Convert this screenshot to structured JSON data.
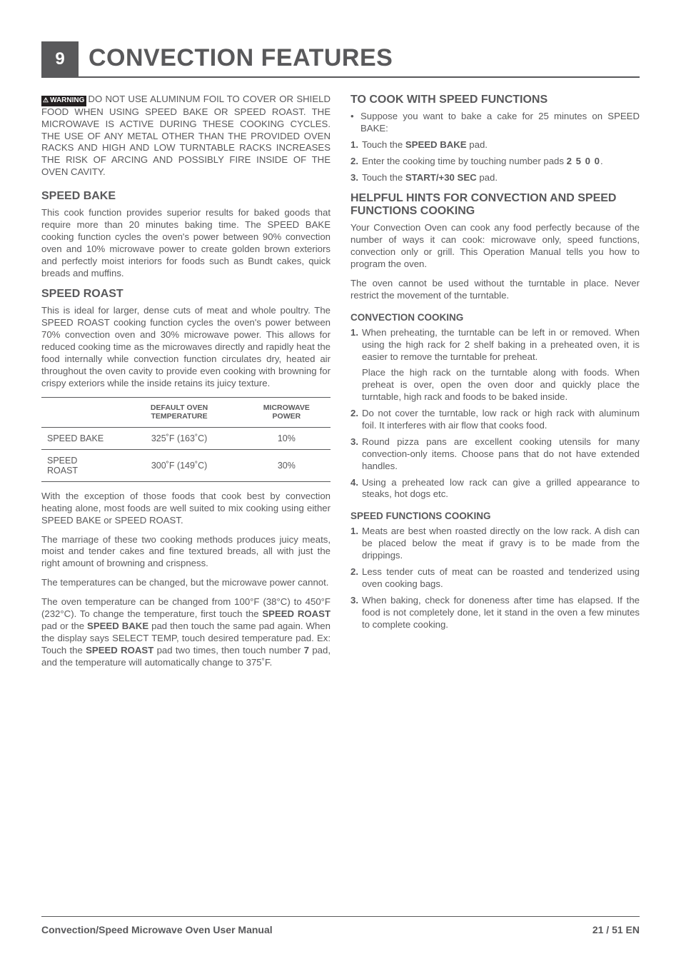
{
  "colors": {
    "text": "#59595b",
    "bg": "#ffffff",
    "warning_bg": "#231f20",
    "warning_fg": "#ffffff"
  },
  "fonts": {
    "body_pt": 13.2,
    "h2_pt": 16,
    "h3_pt": 13.5,
    "title_pt": 34
  },
  "header": {
    "page_number": "9",
    "title": "CONVECTION FEATURES"
  },
  "left": {
    "warning_label": "WARNING",
    "warning_text": "DO NOT USE ALUMINUM FOIL TO COVER OR SHIELD FOOD WHEN USING SPEED BAKE OR SPEED ROAST. THE MICROWAVE IS ACTIVE DURING THESE COOKING CYCLES. THE USE OF ANY METAL OTHER THAN THE PROVIDED OVEN RACKS AND HIGH AND LOW TURNTABLE RACKS INCREASES THE RISK OF ARCING AND POSSIBLY FIRE INSIDE OF THE OVEN CAVITY.",
    "speed_bake_h": "SPEED BAKE",
    "speed_bake_p": "This cook function provides superior results for baked goods that require more than 20 minutes baking time. The SPEED BAKE cooking function cycles the oven's power between 90% convection oven and 10% microwave power to create golden brown exteriors and perfectly moist interiors for foods such as Bundt cakes, quick breads and muffins.",
    "speed_roast_h": "SPEED ROAST",
    "speed_roast_p": "This is ideal for larger, dense cuts of meat and whole poultry. The SPEED ROAST cooking function cycles the oven's power between 70% convection oven and 30% microwave power. This allows for reduced cooking time as the microwaves directly and rapidly heat the food internally while convection function circulates dry, heated air throughout the oven cavity to provide even cooking with browning for crispy exteriors while the inside retains its juicy texture.",
    "table": {
      "type": "table",
      "columns": [
        "",
        "DEFAULT OVEN TEMPERATURE",
        "MICROWAVE POWER"
      ],
      "rows": [
        [
          "SPEED BAKE",
          "325˚F (163˚C)",
          "10%"
        ],
        [
          "SPEED ROAST",
          "300˚F (149˚C)",
          "30%"
        ]
      ],
      "border_color": "#59595b",
      "header_fontsize": 10.5,
      "cell_fontsize": 12.5
    },
    "p_after_1": "With the exception of those foods that cook best by convection heating alone, most foods are well suited to mix cooking using either SPEED BAKE or SPEED ROAST.",
    "p_after_2": "The marriage of these two cooking methods produces juicy meats, moist and tender cakes and fine textured breads, all with just the right amount of browning and crispness.",
    "p_after_3": "The temperatures can be changed, but the microwave power cannot.",
    "p_after_4_pre": "The oven temperature can be changed from 100°F (38°C) to 450°F (232°C). To change the temperature, first touch the ",
    "p_after_4_b1": "SPEED ROAST",
    "p_after_4_mid1": " pad or the ",
    "p_after_4_b2": "SPEED BAKE",
    "p_after_4_mid2": " pad then touch the same pad again. When the display says SELECT TEMP, touch desired temperature pad. Ex: Touch the ",
    "p_after_4_b3": "SPEED ROAST",
    "p_after_4_mid3": " pad two times, then touch number ",
    "p_after_4_b4": "7",
    "p_after_4_end": " pad, and the temperature will automatically change to 375˚F."
  },
  "right": {
    "cook_h": "TO COOK WITH SPEED FUNCTIONS",
    "bullet1": "Suppose you want to bake a cake for 25 minutes on SPEED BAKE:",
    "step1_pre": "Touch the ",
    "step1_b": "SPEED BAKE",
    "step1_post": " pad.",
    "step2_pre": "Enter the cooking time by touching number pads ",
    "step2_b": "2 5 0 0",
    "step2_post": ".",
    "step3_pre": "Touch the ",
    "step3_b": "START/+30 SEC",
    "step3_post": " pad.",
    "hints_h": "HELPFUL HINTS FOR CONVECTION AND SPEED FUNCTIONS COOKING",
    "hints_p1": "Your Convection Oven can cook any food perfectly because of the number of ways it can cook: microwave only, speed functions, convection only or grill. This Operation Manual tells you how to program the oven.",
    "hints_p2": "The oven cannot be used without the turntable in place. Never restrict the movement of the turntable.",
    "conv_h": "CONVECTION COOKING",
    "conv_1a": "When preheating, the turntable can be left in or removed. When using the high rack for 2 shelf baking in a preheated oven, it is easier to remove the turntable for preheat.",
    "conv_1b": "Place the high rack on the turntable along with foods. When preheat is over, open the oven door and quickly place the turntable, high rack and foods to be baked inside.",
    "conv_2": "Do not cover the turntable, low rack or high rack with aluminum foil. It interferes with air flow that cooks food.",
    "conv_3": "Round pizza pans are excellent cooking utensils for many convection-only items. Choose pans that do not have extended handles.",
    "conv_4": "Using a preheated low rack can give a grilled appearance to steaks, hot dogs etc.",
    "speedfn_h": "SPEED FUNCTIONS COOKING",
    "sf_1": "Meats are best when roasted directly on the low rack. A dish can be placed below the meat if gravy is to be made from the drippings.",
    "sf_2": "Less tender cuts of meat can be roasted and tenderized using oven cooking bags.",
    "sf_3": "When baking, check for doneness after time has elapsed. If the food is not completely done, let it stand in the oven a few minutes to complete cooking."
  },
  "footer": {
    "left": "Convection/Speed Microwave Oven User Manual",
    "right": "21 / 51 EN"
  }
}
